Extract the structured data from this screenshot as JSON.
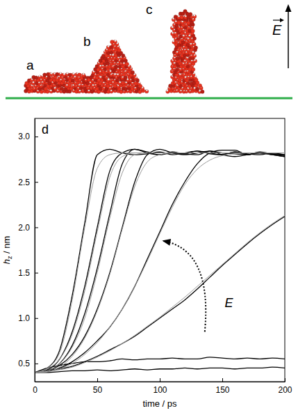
{
  "diagram": {
    "labels": [
      "a",
      "b",
      "c"
    ],
    "field_label": "E"
  },
  "chart_data": {
    "type": "line",
    "panel_label": "d",
    "x_label": "time / ps",
    "y_label": "hz / nm",
    "annotation": "E",
    "x": [
      0,
      10,
      20,
      30,
      40,
      50,
      60,
      70,
      80,
      90,
      100,
      110,
      120,
      130,
      140,
      150,
      160,
      170,
      180,
      190,
      200
    ],
    "series": [
      {
        "color": "#000000",
        "line_style": "solid",
        "values": [
          0.4,
          0.45,
          0.65,
          1.25,
          2.05,
          2.8,
          2.86,
          2.82,
          2.8,
          2.81,
          2.83,
          2.8,
          2.82,
          2.84,
          2.81,
          2.8,
          2.83,
          2.81,
          2.8,
          2.82,
          2.8
        ]
      },
      {
        "color": "#000000",
        "line_style": "solid",
        "values": [
          0.4,
          0.43,
          0.55,
          0.85,
          1.35,
          2.0,
          2.62,
          2.82,
          2.86,
          2.83,
          2.8,
          2.82,
          2.81,
          2.84,
          2.82,
          2.8,
          2.83,
          2.8,
          2.82,
          2.81,
          2.8
        ]
      },
      {
        "color": "#000000",
        "line_style": "solid",
        "values": [
          0.4,
          0.42,
          0.5,
          0.7,
          1.05,
          1.55,
          2.15,
          2.7,
          2.86,
          2.82,
          2.8,
          2.83,
          2.81,
          2.8,
          2.84,
          2.82,
          2.81,
          2.8,
          2.83,
          2.81,
          2.79
        ]
      },
      {
        "color": "#000000",
        "line_style": "solid",
        "values": [
          0.4,
          0.42,
          0.48,
          0.6,
          0.8,
          1.1,
          1.5,
          2.0,
          2.5,
          2.8,
          2.86,
          2.82,
          2.8,
          2.82,
          2.84,
          2.8,
          2.78,
          2.8,
          2.82,
          2.8,
          2.78
        ]
      },
      {
        "color": "#000000",
        "line_style": "solid",
        "values": [
          0.4,
          0.42,
          0.45,
          0.52,
          0.62,
          0.75,
          0.9,
          1.1,
          1.35,
          1.65,
          1.95,
          2.25,
          2.5,
          2.7,
          2.82,
          2.85,
          2.85,
          2.8,
          2.82,
          2.8,
          2.78
        ]
      },
      {
        "color": "#000000",
        "line_style": "solid",
        "values": [
          0.4,
          0.42,
          0.44,
          0.47,
          0.52,
          0.58,
          0.65,
          0.72,
          0.8,
          0.9,
          1.0,
          1.1,
          1.2,
          1.32,
          1.45,
          1.58,
          1.7,
          1.82,
          1.93,
          2.03,
          2.12
        ]
      },
      {
        "color": "#000000",
        "line_style": "solid",
        "values": [
          0.4,
          0.45,
          0.48,
          0.5,
          0.52,
          0.52,
          0.53,
          0.55,
          0.54,
          0.55,
          0.55,
          0.56,
          0.55,
          0.55,
          0.57,
          0.56,
          0.55,
          0.56,
          0.55,
          0.56,
          0.55
        ]
      },
      {
        "color": "#000000",
        "line_style": "solid",
        "values": [
          0.4,
          0.4,
          0.41,
          0.42,
          0.42,
          0.43,
          0.42,
          0.43,
          0.44,
          0.43,
          0.44,
          0.44,
          0.45,
          0.44,
          0.45,
          0.45,
          0.44,
          0.45,
          0.45,
          0.46,
          0.45
        ]
      },
      {
        "color": "#9a9a9a",
        "line_style": "solid",
        "values": [
          0.4,
          0.45,
          0.62,
          1.2,
          2.0,
          2.65,
          2.8,
          2.82,
          2.82,
          2.82,
          2.82,
          2.82,
          2.82,
          2.82,
          2.82,
          2.82,
          2.82,
          2.82,
          2.82,
          2.82,
          2.82
        ]
      },
      {
        "color": "#9a9a9a",
        "line_style": "solid",
        "values": [
          0.4,
          0.44,
          0.55,
          0.82,
          1.3,
          1.95,
          2.55,
          2.78,
          2.82,
          2.82,
          2.82,
          2.82,
          2.82,
          2.82,
          2.82,
          2.82,
          2.82,
          2.82,
          2.82,
          2.82,
          2.82
        ]
      },
      {
        "color": "#9a9a9a",
        "line_style": "solid",
        "values": [
          0.4,
          0.42,
          0.5,
          0.68,
          1.0,
          1.5,
          2.1,
          2.6,
          2.8,
          2.82,
          2.82,
          2.82,
          2.82,
          2.82,
          2.82,
          2.82,
          2.82,
          2.82,
          2.82,
          2.82,
          2.82
        ]
      },
      {
        "color": "#9a9a9a",
        "line_style": "solid",
        "values": [
          0.4,
          0.41,
          0.46,
          0.58,
          0.78,
          1.08,
          1.48,
          1.98,
          2.45,
          2.72,
          2.8,
          2.82,
          2.82,
          2.82,
          2.82,
          2.82,
          2.82,
          2.82,
          2.82,
          2.82,
          2.82
        ]
      },
      {
        "color": "#9a9a9a",
        "line_style": "solid",
        "values": [
          0.4,
          0.41,
          0.44,
          0.5,
          0.6,
          0.73,
          0.9,
          1.1,
          1.35,
          1.63,
          1.93,
          2.22,
          2.47,
          2.64,
          2.74,
          2.79,
          2.81,
          2.82,
          2.82,
          2.82,
          2.82
        ]
      },
      {
        "color": "#9a9a9a",
        "line_style": "solid",
        "values": [
          0.4,
          0.41,
          0.43,
          0.46,
          0.51,
          0.57,
          0.64,
          0.72,
          0.81,
          0.91,
          1.01,
          1.12,
          1.23,
          1.35,
          1.47,
          1.59,
          1.71,
          1.83,
          1.94,
          2.04,
          2.13
        ]
      }
    ],
    "xlim": [
      0,
      200
    ],
    "xticks": [
      0,
      50,
      100,
      150,
      200
    ],
    "ylim": [
      0.3,
      3.2
    ],
    "yticks": [
      0.5,
      {
        "value": 1,
        "label": "1.0"
      },
      1.5,
      {
        "value": 2,
        "label": "2.0"
      },
      2.5,
      {
        "value": 3,
        "label": "3.0"
      }
    ]
  }
}
